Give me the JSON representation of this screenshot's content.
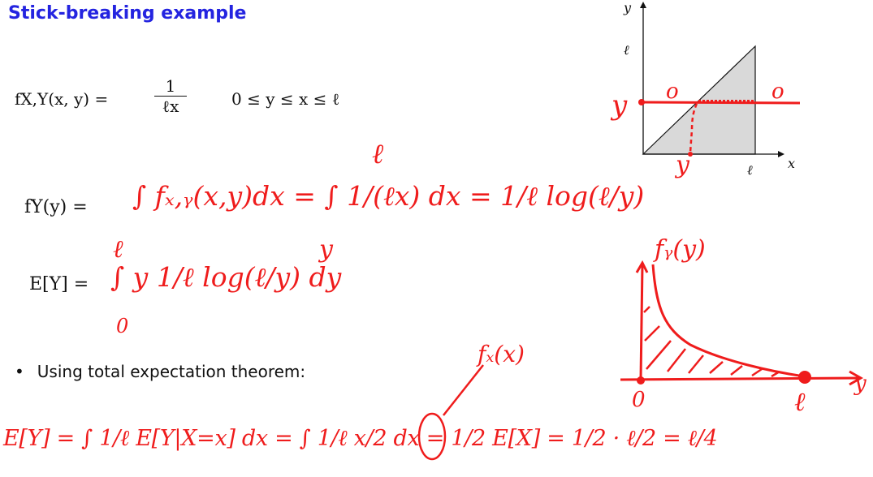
{
  "slide": {
    "title": "Stick-breaking example",
    "joint_density": "fₓ,ᵧ(x, y) = 1/(ℓx),",
    "joint_lhs": "fX,Y(x, y) =",
    "joint_num": "1",
    "joint_den": "ℓx",
    "joint_range": "0 ≤ y ≤ x ≤ ℓ",
    "fy_lhs": "fY(y)  =",
    "ey_lhs": "E[Y] =",
    "bullet_text": "Using total expectation theorem:"
  },
  "handwriting": {
    "fy_integral": "∫ fₓ,ᵧ(x,y)dx = ∫ 1/(ℓx) dx = 1/ℓ log(ℓ/y)",
    "fy_upper": "ℓ",
    "fy_lower": "y",
    "ey_integral": "∫ y 1/ℓ log(ℓ/y) dy",
    "ey_upper": "ℓ",
    "ey_lower": "0",
    "total_exp": "E[Y] = ∫ 1/ℓ E[Y|X=x] dx = ∫ 1/ℓ x/2 dx = 1/2 E[X] = 1/2 · ℓ/2 = ℓ/4",
    "fx_label": "fₓ(x)"
  },
  "top_plot": {
    "y_axis_label": "y",
    "x_axis_label": "x",
    "ell_y": "ℓ",
    "ell_x": "ℓ",
    "y_mark": "y",
    "y_mark_x": "y",
    "zero_left": "o",
    "zero_right": "o"
  },
  "bottom_plot": {
    "title": "fᵧ(y)",
    "origin": "0",
    "ell": "ℓ",
    "y_label": "y"
  },
  "colors": {
    "title": "#2424e0",
    "ink": "#ef1c1c",
    "shade": "#d9d9d9"
  }
}
